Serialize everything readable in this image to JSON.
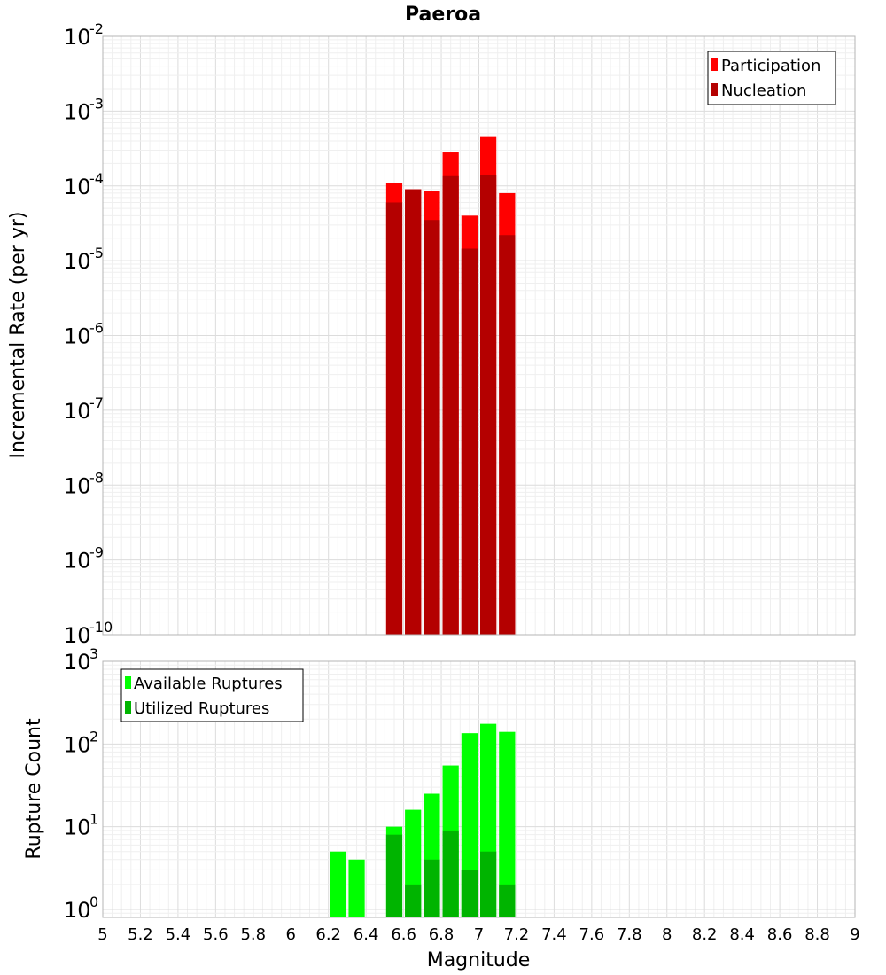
{
  "chart_data": [
    {
      "type": "bar",
      "title": "Paeroa",
      "xlabel": "Magnitude",
      "ylabel": "Incremental Rate (per yr)",
      "yscale": "log",
      "xlim": [
        5,
        9
      ],
      "ylim": [
        1e-10,
        0.01
      ],
      "ytick_exponents": [
        -2,
        -3,
        -4,
        -5,
        -6,
        -7,
        -8,
        -9,
        -10
      ],
      "grid": true,
      "legend_position": "top-right",
      "x": [
        6.55,
        6.65,
        6.75,
        6.85,
        6.95,
        7.05,
        7.15
      ],
      "bar_width": 0.1,
      "series": [
        {
          "name": "Participation",
          "color": "#ff0000",
          "values": [
            0.00011,
            9e-05,
            8.5e-05,
            0.00028,
            4e-05,
            0.00045,
            8e-05
          ]
        },
        {
          "name": "Nucleation",
          "color": "#b40000",
          "values": [
            6e-05,
            9e-05,
            3.5e-05,
            0.000135,
            1.45e-05,
            0.00014,
            2.2e-05
          ]
        }
      ]
    },
    {
      "type": "bar",
      "xlabel": "Magnitude",
      "ylabel": "Rupture Count",
      "yscale": "log",
      "xlim": [
        5,
        9
      ],
      "ylim": [
        0.8,
        1000
      ],
      "ytick_exponents": [
        3,
        2,
        1,
        0
      ],
      "xticks": [
        "5",
        "5.2",
        "5.4",
        "5.6",
        "5.8",
        "6",
        "6.2",
        "6.4",
        "6.6",
        "6.8",
        "7",
        "7.2",
        "7.4",
        "7.6",
        "7.8",
        "8",
        "8.2",
        "8.4",
        "8.6",
        "8.8",
        "9"
      ],
      "grid": true,
      "legend_position": "top-left",
      "x": [
        6.25,
        6.35,
        6.55,
        6.65,
        6.75,
        6.85,
        6.95,
        7.05,
        7.15
      ],
      "bar_width": 0.1,
      "series": [
        {
          "name": "Available Ruptures",
          "color": "#00ff00",
          "values": [
            5,
            4,
            10,
            16,
            25,
            55,
            135,
            175,
            140
          ]
        },
        {
          "name": "Utilized Ruptures",
          "color": "#00b400",
          "values": [
            0,
            0,
            8,
            2,
            4,
            9,
            3,
            5,
            2
          ]
        }
      ]
    }
  ]
}
